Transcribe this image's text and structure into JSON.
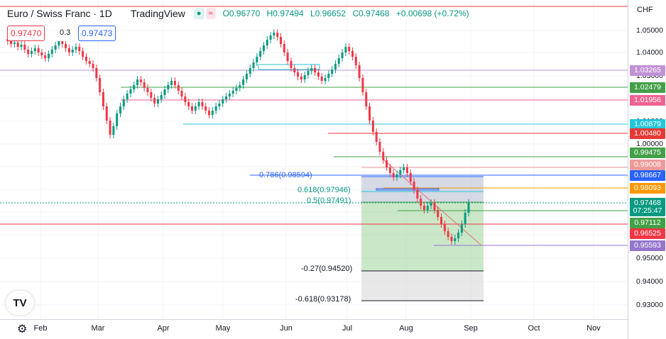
{
  "header": {
    "symbol": "Euro / Swiss Franc · 1D",
    "brand": "TradingView",
    "ohlc": {
      "o": "O0.96770",
      "h": "H0.97494",
      "l": "L0.96652",
      "c": "C0.97468",
      "chg": "+0.00698 (+0.72%)"
    }
  },
  "trade_panel": {
    "sell": "0.97470",
    "spread": "0.3",
    "buy": "0.97473"
  },
  "axis": {
    "currency": "CHF",
    "ticks": [
      "1.05000",
      "1.04000",
      "1.03000",
      "1.02000",
      "1.01000",
      "1.00000",
      "0.99000",
      "0.98000",
      "0.97000",
      "0.96000",
      "0.95000",
      "0.94000",
      "0.93000"
    ],
    "months": [
      "Feb",
      "Mar",
      "Apr",
      "May",
      "Jun",
      "Jul",
      "Aug",
      "Sep",
      "Oct",
      "Nov"
    ]
  },
  "level_tags": [
    {
      "value": "1.03265",
      "color": "#c191d6"
    },
    {
      "value": "1.02479",
      "color": "#43a047"
    },
    {
      "value": "1.01956",
      "color": "#f06292"
    },
    {
      "value": "1.00879",
      "color": "#26c6da"
    },
    {
      "value": "1.00480",
      "color": "#e53935"
    },
    {
      "value": "0.99475",
      "color": "#43a047"
    },
    {
      "value": "0.99008",
      "color": "#ef9a9a"
    },
    {
      "value": "0.98667",
      "color": "#2962ff"
    },
    {
      "value": "0.98093",
      "color": "#ff9800"
    },
    {
      "value": "0.97468",
      "color": "#089981"
    },
    {
      "value": "07:25:47",
      "color": "#089981"
    },
    {
      "value": "0.97112",
      "color": "#43a047"
    },
    {
      "value": "0.96525",
      "color": "#f23645"
    },
    {
      "value": "0.95593",
      "color": "#9575cd"
    }
  ],
  "fib_labels": [
    {
      "text": "0.786(0.98594)",
      "color": "#2962ff"
    },
    {
      "text": "0.618(0.97946)",
      "color": "#089981"
    },
    {
      "text": "0.5(0.97491)",
      "color": "#089981"
    },
    {
      "text": "-0.27(0.94520)",
      "color": "#131722"
    },
    {
      "text": "-0.618(0.93178)",
      "color": "#131722"
    }
  ],
  "logo": "TV"
}
